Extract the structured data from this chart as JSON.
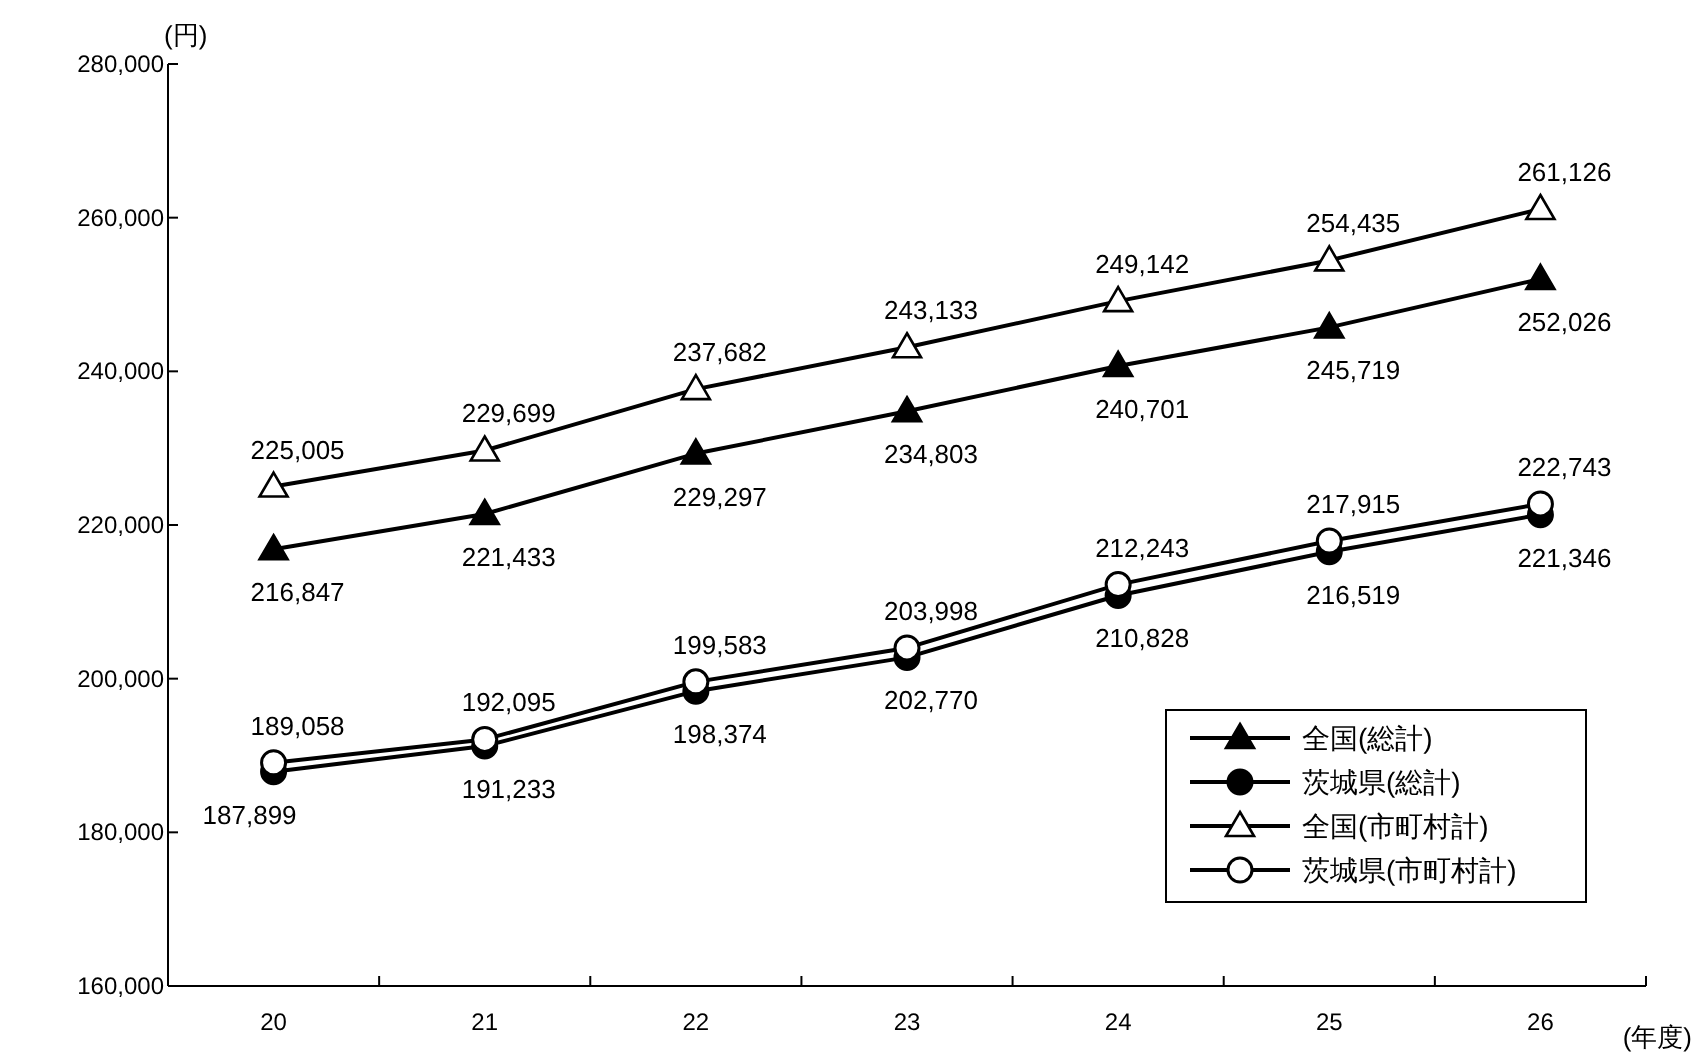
{
  "chart_data": {
    "type": "line",
    "xlabel": "(年度)",
    "ylabel": "(円)",
    "categories": [
      "20",
      "21",
      "22",
      "23",
      "24",
      "25",
      "26"
    ],
    "ylim": [
      160000,
      280000
    ],
    "yticks": [
      {
        "value": 160000,
        "label": "160,000"
      },
      {
        "value": 180000,
        "label": "180,000"
      },
      {
        "value": 200000,
        "label": "200,000"
      },
      {
        "value": 220000,
        "label": "220,000"
      },
      {
        "value": 240000,
        "label": "240,000"
      },
      {
        "value": 260000,
        "label": "260,000"
      },
      {
        "value": 280000,
        "label": "280,000"
      }
    ],
    "grid": false,
    "legend": "bottom right",
    "line_style": "solid",
    "series": [
      {
        "name": "全国(総計)",
        "color": "#000000",
        "marker": "triangle",
        "values": [
          216847,
          221433,
          229297,
          234803,
          240701,
          245719,
          252026
        ],
        "value_labels": [
          "216,847",
          "221,433",
          "229,297",
          "234,803",
          "240,701",
          "245,719",
          "252,026"
        ]
      },
      {
        "name": "茨城県(総計)",
        "color": "#000000",
        "marker": "circle",
        "values": [
          187899,
          191233,
          198374,
          202770,
          210828,
          216519,
          221346
        ],
        "value_labels": [
          "187,899",
          "191,233",
          "198,374",
          "202,770",
          "210,828",
          "216,519",
          "221,346"
        ]
      },
      {
        "name": "全国(市町村計)",
        "color": "#000000",
        "marker": "triangle",
        "values": [
          225005,
          229699,
          237682,
          243133,
          249142,
          254435,
          261126
        ],
        "value_labels": [
          "225,005",
          "229,699",
          "237,682",
          "243,133",
          "249,142",
          "254,435",
          "261,126"
        ]
      },
      {
        "name": "茨城県(市町村計)",
        "color": "#000000",
        "marker": "circle",
        "values": [
          189058,
          192095,
          199583,
          203998,
          212243,
          217915,
          222743
        ],
        "value_labels": [
          "189,058",
          "192,095",
          "199,583",
          "203,998",
          "212,243",
          "217,915",
          "222,743"
        ]
      }
    ]
  }
}
